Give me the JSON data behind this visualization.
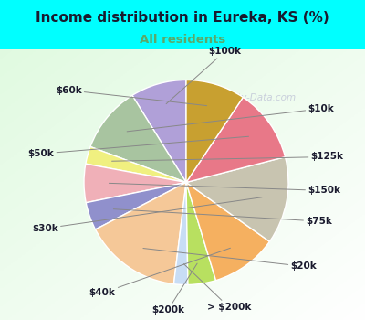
{
  "title": "Income distribution in Eureka, KS (%)",
  "subtitle": "All residents",
  "title_color": "#1a1a2e",
  "subtitle_color": "#5aaa6a",
  "background_outer": "#00FFFF",
  "watermark": "City-Data.com",
  "labels": [
    "$100k",
    "$10k",
    "$125k",
    "$150k",
    "$75k",
    "$20k",
    "> $200k",
    "$200k",
    "$40k",
    "$30k",
    "$50k",
    "$60k"
  ],
  "values": [
    8.0,
    9.5,
    2.5,
    5.5,
    4.0,
    14.0,
    2.0,
    4.0,
    9.5,
    12.5,
    10.5,
    8.5
  ],
  "colors": [
    "#b0a0d8",
    "#a8c4a0",
    "#f0f080",
    "#f0b0b8",
    "#9090cc",
    "#f5c898",
    "#c8ddf5",
    "#b8e060",
    "#f5b060",
    "#c8c4b0",
    "#e87888",
    "#c8a030"
  ],
  "startangle": 90,
  "label_fontsize": 7.5,
  "label_color": "#1a1a2e"
}
